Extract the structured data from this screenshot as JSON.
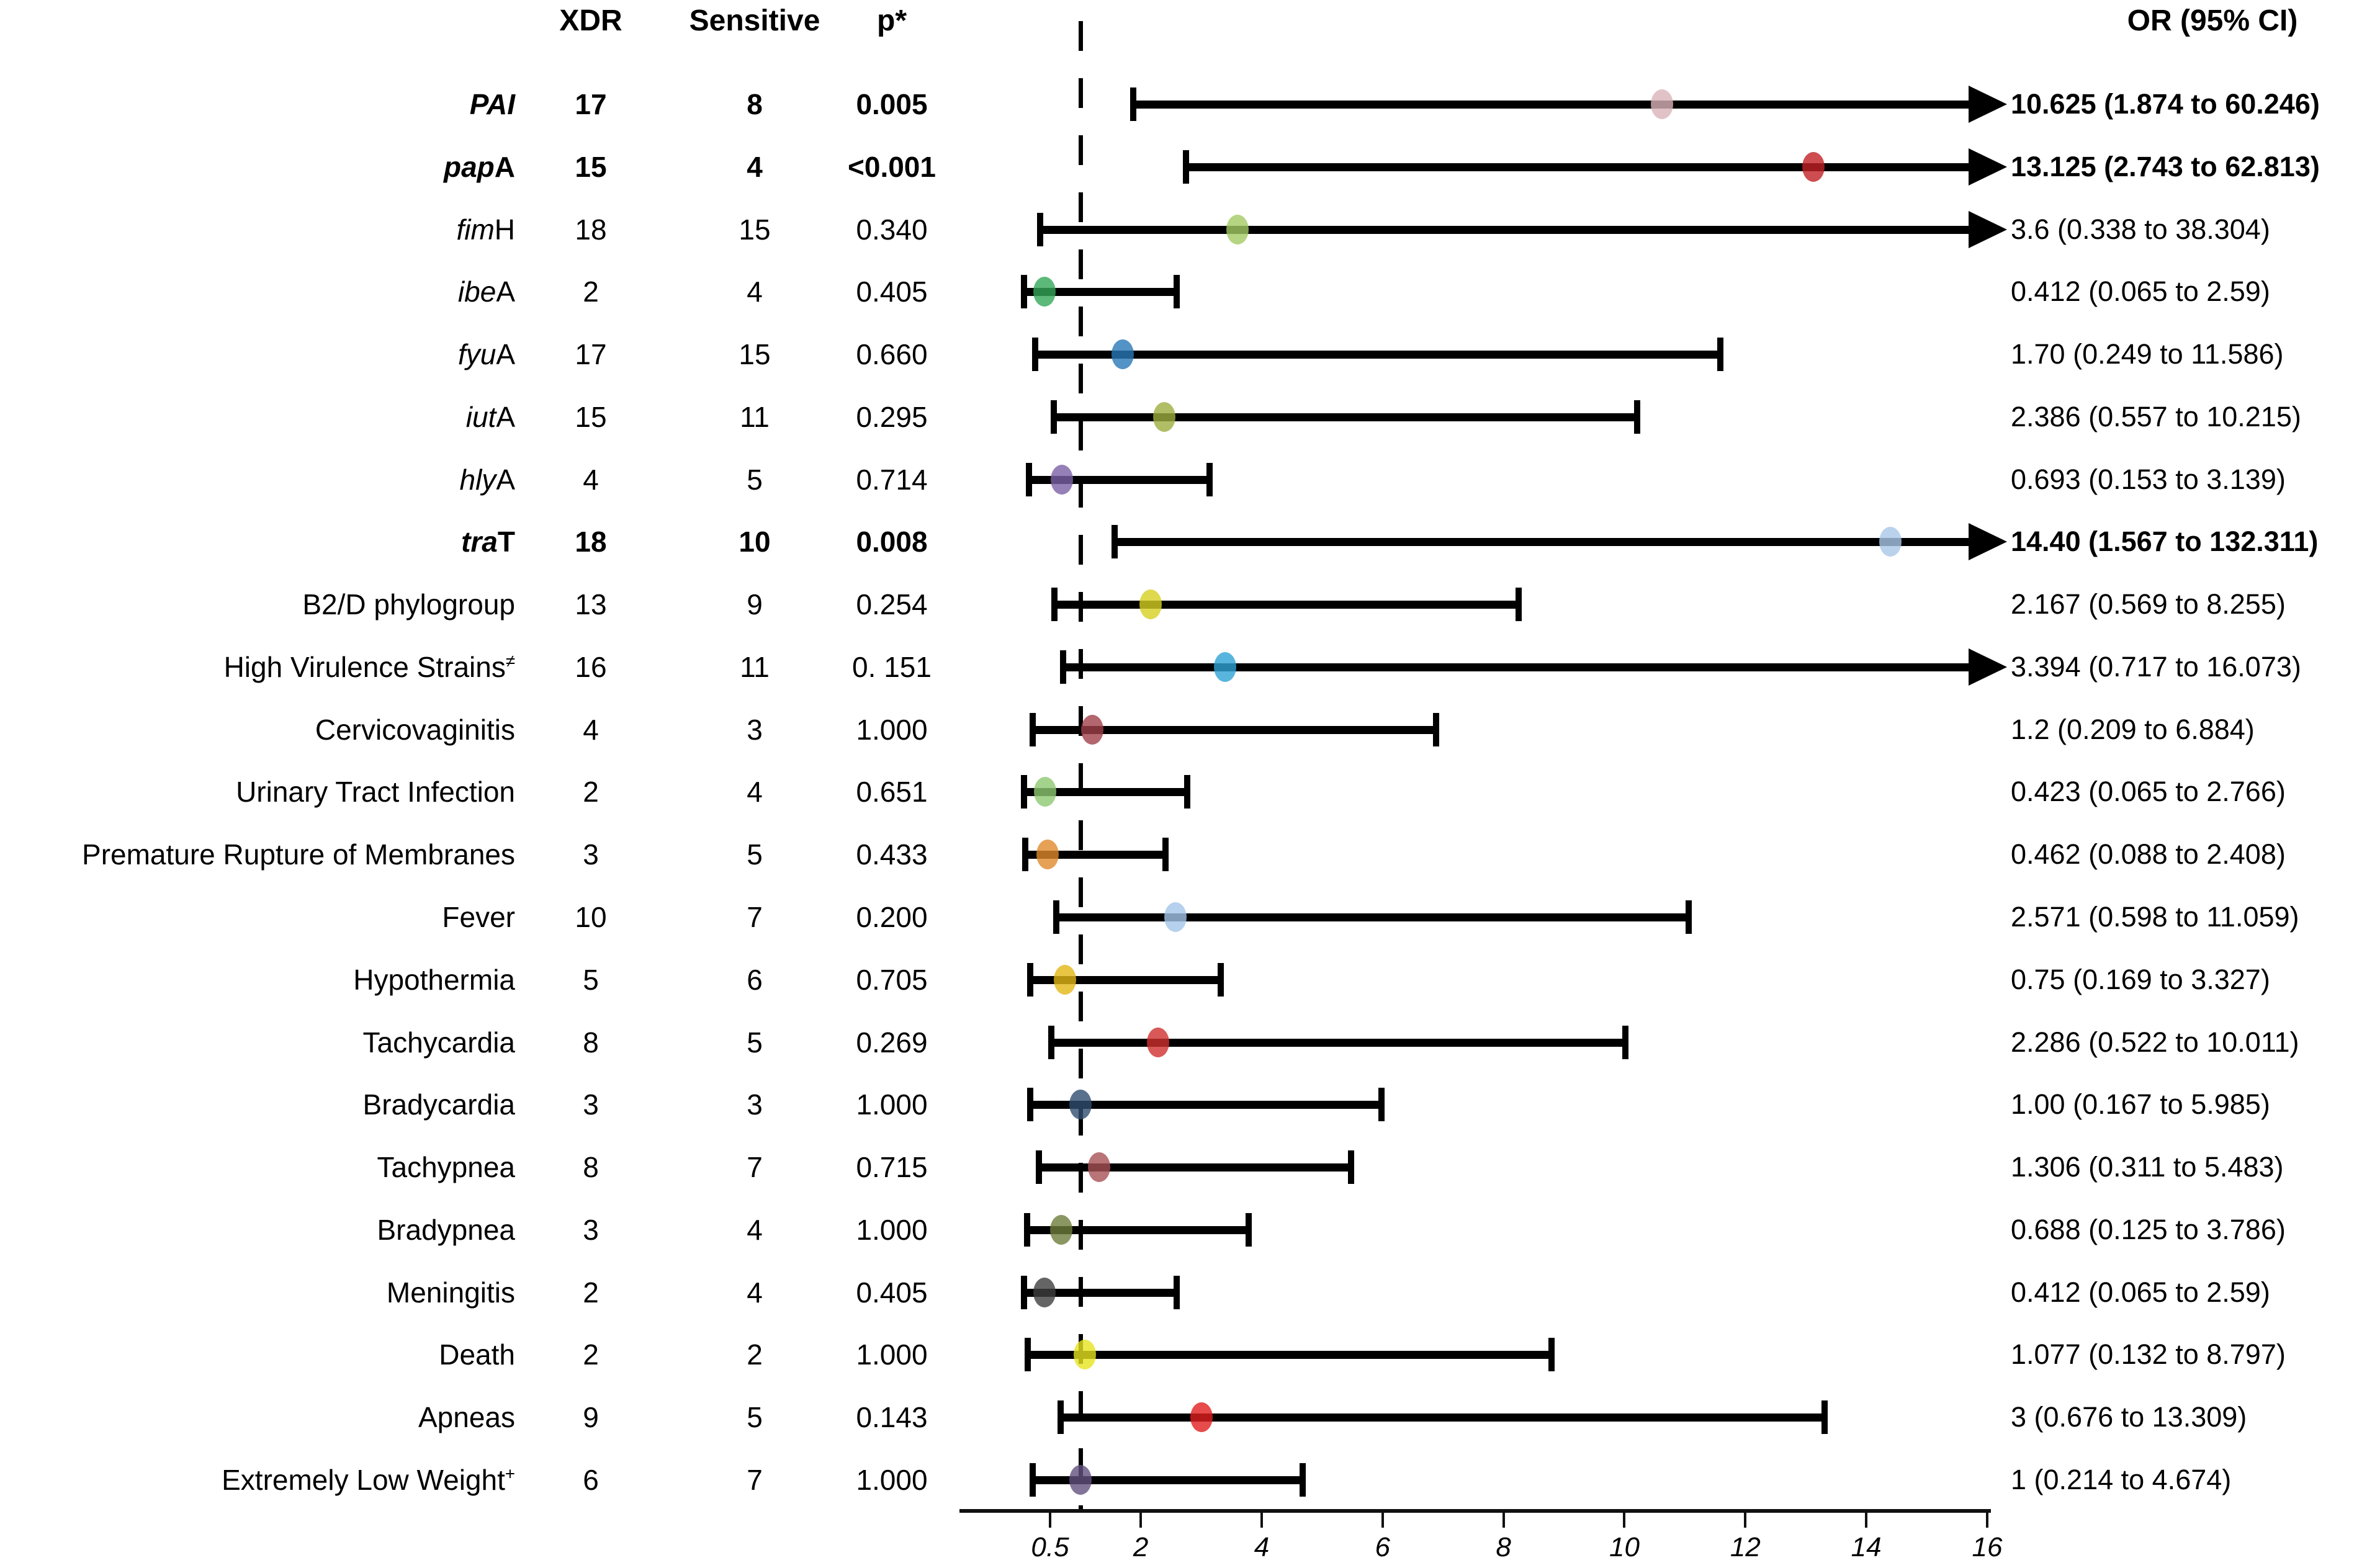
{
  "chart_data": {
    "type": "scatter",
    "subtype": "forest-plot",
    "title": "",
    "columns": {
      "xdr": "XDR",
      "sensitive": "Sensitive",
      "p": "p*",
      "or_ci": "OR (95% CI)"
    },
    "axis": {
      "xmin": 0.5,
      "xmax": 16,
      "reference_line": 1,
      "tick_labels": [
        "0.5",
        "2",
        "4",
        "6",
        "8",
        "10",
        "12",
        "14",
        "16"
      ],
      "tick_values": [
        0.5,
        2,
        4,
        6,
        8,
        10,
        12,
        14,
        16
      ],
      "grid": false,
      "scale": "linear"
    },
    "rows": [
      {
        "label_parts": [
          {
            "t": "PAI",
            "i": true
          }
        ],
        "xdr": "17",
        "sensitive": "8",
        "p": "0.005",
        "or": 10.625,
        "lo": 1.874,
        "hi": 60.246,
        "or_text": "10.625 (1.874 to 60.246)",
        "bold": true,
        "arrow": true,
        "color": "#d9b3b8"
      },
      {
        "label_parts": [
          {
            "t": "pap",
            "i": true
          },
          {
            "t": "A"
          }
        ],
        "xdr": "15",
        "sensitive": "4",
        "p": "<0.001",
        "or": 13.125,
        "lo": 2.743,
        "hi": 62.813,
        "or_text": "13.125 (2.743 to 62.813)",
        "bold": true,
        "arrow": true,
        "color": "#c02025"
      },
      {
        "label_parts": [
          {
            "t": "fim",
            "i": true
          },
          {
            "t": "H"
          }
        ],
        "xdr": "18",
        "sensitive": "15",
        "p": "0.340",
        "or": 3.6,
        "lo": 0.338,
        "hi": 38.304,
        "or_text": "3.6 (0.338 to 38.304)",
        "bold": false,
        "arrow": true,
        "color": "#a2cb64"
      },
      {
        "label_parts": [
          {
            "t": "ibe",
            "i": true
          },
          {
            "t": "A"
          }
        ],
        "xdr": "2",
        "sensitive": "4",
        "p": "0.405",
        "or": 0.412,
        "lo": 0.065,
        "hi": 2.59,
        "or_text": "0.412 (0.065 to 2.59)",
        "bold": false,
        "arrow": false,
        "color": "#33a857"
      },
      {
        "label_parts": [
          {
            "t": "fyu",
            "i": true
          },
          {
            "t": "A"
          }
        ],
        "xdr": "17",
        "sensitive": "15",
        "p": "0.660",
        "or": 1.7,
        "lo": 0.249,
        "hi": 11.586,
        "or_text": "1.70 (0.249 to 11.586)",
        "bold": false,
        "arrow": false,
        "color": "#2878b8"
      },
      {
        "label_parts": [
          {
            "t": "iut",
            "i": true
          },
          {
            "t": "A"
          }
        ],
        "xdr": "15",
        "sensitive": "11",
        "p": "0.295",
        "or": 2.386,
        "lo": 0.557,
        "hi": 10.215,
        "or_text": "2.386 (0.557 to 10.215)",
        "bold": false,
        "arrow": false,
        "color": "#9fae3e"
      },
      {
        "label_parts": [
          {
            "t": "hly",
            "i": true
          },
          {
            "t": "A"
          }
        ],
        "xdr": "4",
        "sensitive": "5",
        "p": "0.714",
        "or": 0.693,
        "lo": 0.153,
        "hi": 3.139,
        "or_text": "0.693 (0.153 to 3.139)",
        "bold": false,
        "arrow": false,
        "color": "#7b60a5"
      },
      {
        "label_parts": [
          {
            "t": "tra",
            "i": true
          },
          {
            "t": "T"
          }
        ],
        "xdr": "18",
        "sensitive": "10",
        "p": "0.008",
        "or": 14.4,
        "lo": 1.567,
        "hi": 132.311,
        "or_text": "14.40 (1.567 to 132.311)",
        "bold": true,
        "arrow": true,
        "color": "#aac7e8"
      },
      {
        "label_parts": [
          {
            "t": "B2/D phylogroup"
          }
        ],
        "xdr": "13",
        "sensitive": "9",
        "p": "0.254",
        "or": 2.167,
        "lo": 0.569,
        "hi": 8.255,
        "or_text": "2.167 (0.569 to 8.255)",
        "bold": false,
        "arrow": false,
        "color": "#d6d020"
      },
      {
        "label_parts": [
          {
            "t": "High Virulence Strains"
          },
          {
            "t": "≠",
            "sup": true
          }
        ],
        "xdr": "16",
        "sensitive": "11",
        "p": "0. 151",
        "or": 3.394,
        "lo": 0.717,
        "hi": 16.073,
        "or_text": "3.394 (0.717 to 16.073)",
        "bold": false,
        "arrow": true,
        "color": "#2ea3d6"
      },
      {
        "label_parts": [
          {
            "t": "Cervicovaginitis"
          }
        ],
        "xdr": "4",
        "sensitive": "3",
        "p": "1.000",
        "or": 1.2,
        "lo": 0.209,
        "hi": 6.884,
        "or_text": "1.2 (0.209 to 6.884)",
        "bold": false,
        "arrow": false,
        "color": "#a04048"
      },
      {
        "label_parts": [
          {
            "t": "Urinary Tract Infection"
          }
        ],
        "xdr": "2",
        "sensitive": "4",
        "p": "0.651",
        "or": 0.423,
        "lo": 0.065,
        "hi": 2.766,
        "or_text": "0.423 (0.065 to 2.766)",
        "bold": false,
        "arrow": false,
        "color": "#8dc870"
      },
      {
        "label_parts": [
          {
            "t": "Premature Rupture of Membranes"
          }
        ],
        "xdr": "3",
        "sensitive": "5",
        "p": "0.433",
        "or": 0.462,
        "lo": 0.088,
        "hi": 2.408,
        "or_text": "0.462 (0.088 to 2.408)",
        "bold": false,
        "arrow": false,
        "color": "#e08a2c"
      },
      {
        "label_parts": [
          {
            "t": "Fever"
          }
        ],
        "xdr": "10",
        "sensitive": "7",
        "p": "0.200",
        "or": 2.571,
        "lo": 0.598,
        "hi": 11.059,
        "or_text": "2.571 (0.598 to 11.059)",
        "bold": false,
        "arrow": false,
        "color": "#a2c5e8"
      },
      {
        "label_parts": [
          {
            "t": "Hypothermia"
          }
        ],
        "xdr": "5",
        "sensitive": "6",
        "p": "0.705",
        "or": 0.75,
        "lo": 0.169,
        "hi": 3.327,
        "or_text": "0.75 (0.169 to 3.327)",
        "bold": false,
        "arrow": false,
        "color": "#e2b614"
      },
      {
        "label_parts": [
          {
            "t": "Tachycardia"
          }
        ],
        "xdr": "8",
        "sensitive": "5",
        "p": "0.269",
        "or": 2.286,
        "lo": 0.522,
        "hi": 10.011,
        "or_text": "2.286 (0.522 to 10.011)",
        "bold": false,
        "arrow": false,
        "color": "#d03030"
      },
      {
        "label_parts": [
          {
            "t": "Bradycardia"
          }
        ],
        "xdr": "3",
        "sensitive": "3",
        "p": "1.000",
        "or": 1.0,
        "lo": 0.167,
        "hi": 5.985,
        "or_text": "1.00 (0.167 to 5.985)",
        "bold": false,
        "arrow": false,
        "color": "#2f4e6f"
      },
      {
        "label_parts": [
          {
            "t": "Tachypnea"
          }
        ],
        "xdr": "8",
        "sensitive": "7",
        "p": "0.715",
        "or": 1.306,
        "lo": 0.311,
        "hi": 5.483,
        "or_text": "1.306 (0.311 to 5.483)",
        "bold": false,
        "arrow": false,
        "color": "#a85156"
      },
      {
        "label_parts": [
          {
            "t": "Bradypnea"
          }
        ],
        "xdr": "3",
        "sensitive": "4",
        "p": "1.000",
        "or": 0.688,
        "lo": 0.125,
        "hi": 3.786,
        "or_text": "0.688 (0.125 to 3.786)",
        "bold": false,
        "arrow": false,
        "color": "#6e7d3c"
      },
      {
        "label_parts": [
          {
            "t": "Meningitis"
          }
        ],
        "xdr": "2",
        "sensitive": "4",
        "p": "0.405",
        "or": 0.412,
        "lo": 0.065,
        "hi": 2.59,
        "or_text": "0.412 (0.065 to 2.59)",
        "bold": false,
        "arrow": false,
        "color": "#3f3f3f"
      },
      {
        "label_parts": [
          {
            "t": "Death"
          }
        ],
        "xdr": "2",
        "sensitive": "2",
        "p": "1.000",
        "or": 1.077,
        "lo": 0.132,
        "hi": 8.797,
        "or_text": "1.077 (0.132 to 8.797)",
        "bold": false,
        "arrow": false,
        "color": "#e6e31e"
      },
      {
        "label_parts": [
          {
            "t": "Apneas"
          }
        ],
        "xdr": "9",
        "sensitive": "5",
        "p": "0.143",
        "or": 3,
        "lo": 0.676,
        "hi": 13.309,
        "or_text": "3 (0.676 to 13.309)",
        "bold": false,
        "arrow": false,
        "color": "#e11e1e"
      },
      {
        "label_parts": [
          {
            "t": "Extremely Low Weight"
          },
          {
            "t": "+",
            "sup": true
          }
        ],
        "xdr": "6",
        "sensitive": "7",
        "p": "1.000",
        "or": 1,
        "lo": 0.214,
        "hi": 4.674,
        "or_text": "1 (0.214 to 4.674)",
        "bold": false,
        "arrow": false,
        "color": "#63517f"
      }
    ]
  }
}
